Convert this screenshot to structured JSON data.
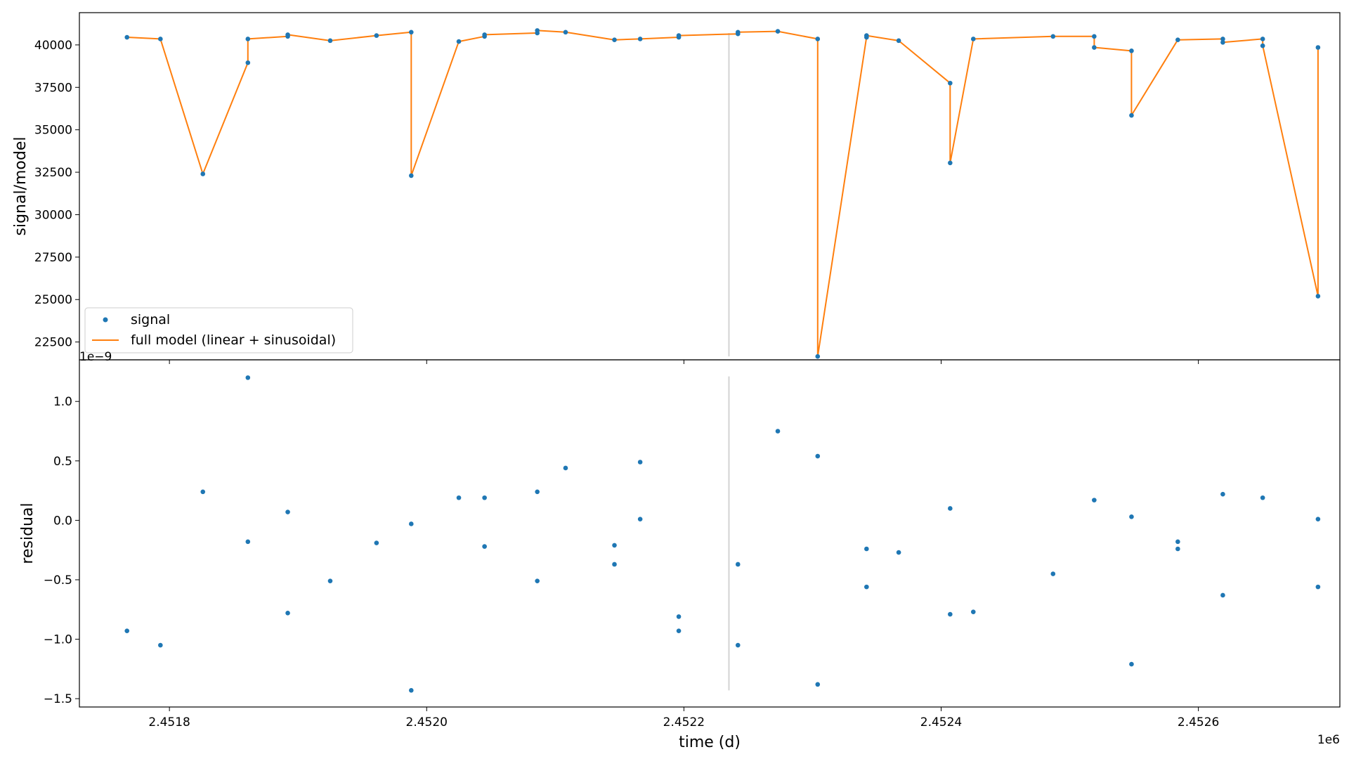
{
  "figure": {
    "xlabel": "time (d)",
    "x_offset_text": "1e6",
    "colors": {
      "signal": "#1f77b4",
      "model": "#ff7f0e",
      "vline": "#d3d3d3",
      "axes": "#000000",
      "background": "#ffffff"
    }
  },
  "chart_data": [
    {
      "type": "scatter",
      "panel": "top",
      "ylabel": "signal/model",
      "xlim": [
        2451730,
        2452710
      ],
      "ylim": [
        21450,
        41900
      ],
      "x_ticks": [
        2451800,
        2452000,
        2452200,
        2452400,
        2452600
      ],
      "y_ticks": [
        22500,
        25000,
        27500,
        30000,
        32500,
        35000,
        37500,
        40000
      ],
      "y_tick_labels": [
        "22500",
        "25000",
        "27500",
        "30000",
        "32500",
        "35000",
        "37500",
        "40000"
      ],
      "grid": false,
      "legend": {
        "location": "lower-left",
        "entries": [
          "signal",
          "full model (linear + sinusoidal)"
        ]
      },
      "vline": {
        "x": 2452235,
        "ymin": 21650,
        "ymax": 40700
      },
      "series": [
        {
          "name": "signal",
          "kind": "scatter",
          "x": [
            2451767,
            2451793,
            2451826,
            2451861,
            2451861,
            2451892,
            2451892,
            2451925,
            2451961,
            2451988,
            2451988,
            2452025,
            2452045,
            2452045,
            2452086,
            2452086,
            2452108,
            2452146,
            2452166,
            2452196,
            2452196,
            2452242,
            2452242,
            2452273,
            2452304,
            2452304,
            2452342,
            2452342,
            2452367,
            2452407,
            2452407,
            2452425,
            2452487,
            2452519,
            2452519,
            2452548,
            2452548,
            2452584,
            2452619,
            2452619,
            2452650,
            2452650,
            2452693,
            2452693
          ],
          "y": [
            40450,
            40350,
            32400,
            38950,
            40350,
            40500,
            40600,
            40250,
            40550,
            40750,
            32300,
            40200,
            40500,
            40600,
            40700,
            40850,
            40750,
            40300,
            40350,
            40450,
            40550,
            40650,
            40750,
            40800,
            40350,
            21650,
            40450,
            40550,
            40250,
            37750,
            33050,
            40350,
            40500,
            40500,
            39850,
            39650,
            35850,
            40300,
            40350,
            40150,
            40350,
            39950,
            25200,
            39850
          ]
        },
        {
          "name": "full model (linear + sinusoidal)",
          "kind": "line",
          "x": [
            2451767,
            2451793,
            2451826,
            2451861,
            2451861,
            2451892,
            2451892,
            2451925,
            2451961,
            2451988,
            2451988,
            2452025,
            2452045,
            2452045,
            2452086,
            2452086,
            2452108,
            2452146,
            2452166,
            2452196,
            2452196,
            2452242,
            2452242,
            2452273,
            2452304,
            2452304,
            2452342,
            2452342,
            2452367,
            2452407,
            2452407,
            2452425,
            2452487,
            2452519,
            2452519,
            2452548,
            2452548,
            2452584,
            2452619,
            2452619,
            2452650,
            2452650,
            2452693,
            2452693
          ],
          "y": [
            40450,
            40350,
            32400,
            38950,
            40350,
            40500,
            40600,
            40250,
            40550,
            40750,
            32300,
            40200,
            40500,
            40600,
            40700,
            40850,
            40750,
            40300,
            40350,
            40450,
            40550,
            40650,
            40750,
            40800,
            40350,
            21650,
            40450,
            40550,
            40250,
            37750,
            33050,
            40350,
            40500,
            40500,
            39850,
            39650,
            35850,
            40300,
            40350,
            40150,
            40350,
            39950,
            25200,
            39850
          ]
        }
      ]
    },
    {
      "type": "scatter",
      "panel": "bottom",
      "ylabel": "residual",
      "y_offset_text": "1e−9",
      "xlim": [
        2451730,
        2452710
      ],
      "ylim": [
        -1.57,
        1.35
      ],
      "x_ticks": [
        2451800,
        2452000,
        2452200,
        2452400,
        2452600
      ],
      "x_tick_labels": [
        "2.4518",
        "2.4520",
        "2.4522",
        "2.4524",
        "2.4526"
      ],
      "y_ticks": [
        -1.5,
        -1.0,
        -0.5,
        0.0,
        0.5,
        1.0
      ],
      "y_tick_labels": [
        "−1.5",
        "−1.0",
        "−0.5",
        "0.0",
        "0.5",
        "1.0"
      ],
      "grid": false,
      "vline": {
        "x": 2452235,
        "ymin": -1.43,
        "ymax": 1.21
      },
      "series": [
        {
          "name": "residual",
          "kind": "scatter",
          "x": [
            2451767,
            2451793,
            2451826,
            2451861,
            2451861,
            2451892,
            2451892,
            2451925,
            2451961,
            2451988,
            2451988,
            2452025,
            2452045,
            2452045,
            2452086,
            2452086,
            2452108,
            2452146,
            2452146,
            2452166,
            2452166,
            2452196,
            2452196,
            2452242,
            2452242,
            2452273,
            2452304,
            2452304,
            2452342,
            2452342,
            2452367,
            2452407,
            2452407,
            2452425,
            2452487,
            2452519,
            2452548,
            2452548,
            2452584,
            2452584,
            2452619,
            2452619,
            2452650,
            2452693,
            2452693
          ],
          "y": [
            -0.93,
            -1.05,
            0.24,
            1.2,
            -0.18,
            0.07,
            -0.78,
            -0.51,
            -0.19,
            -0.03,
            -1.43,
            0.19,
            0.19,
            -0.22,
            0.24,
            -0.51,
            0.44,
            -0.21,
            -0.37,
            0.49,
            0.01,
            -0.81,
            -0.93,
            -0.37,
            -1.05,
            0.75,
            0.54,
            -1.38,
            -0.24,
            -0.56,
            -0.27,
            0.1,
            -0.79,
            -0.77,
            -0.45,
            0.17,
            0.03,
            -1.21,
            -0.18,
            -0.24,
            -0.63,
            0.22,
            0.19,
            0.01,
            -0.56
          ]
        }
      ]
    }
  ]
}
